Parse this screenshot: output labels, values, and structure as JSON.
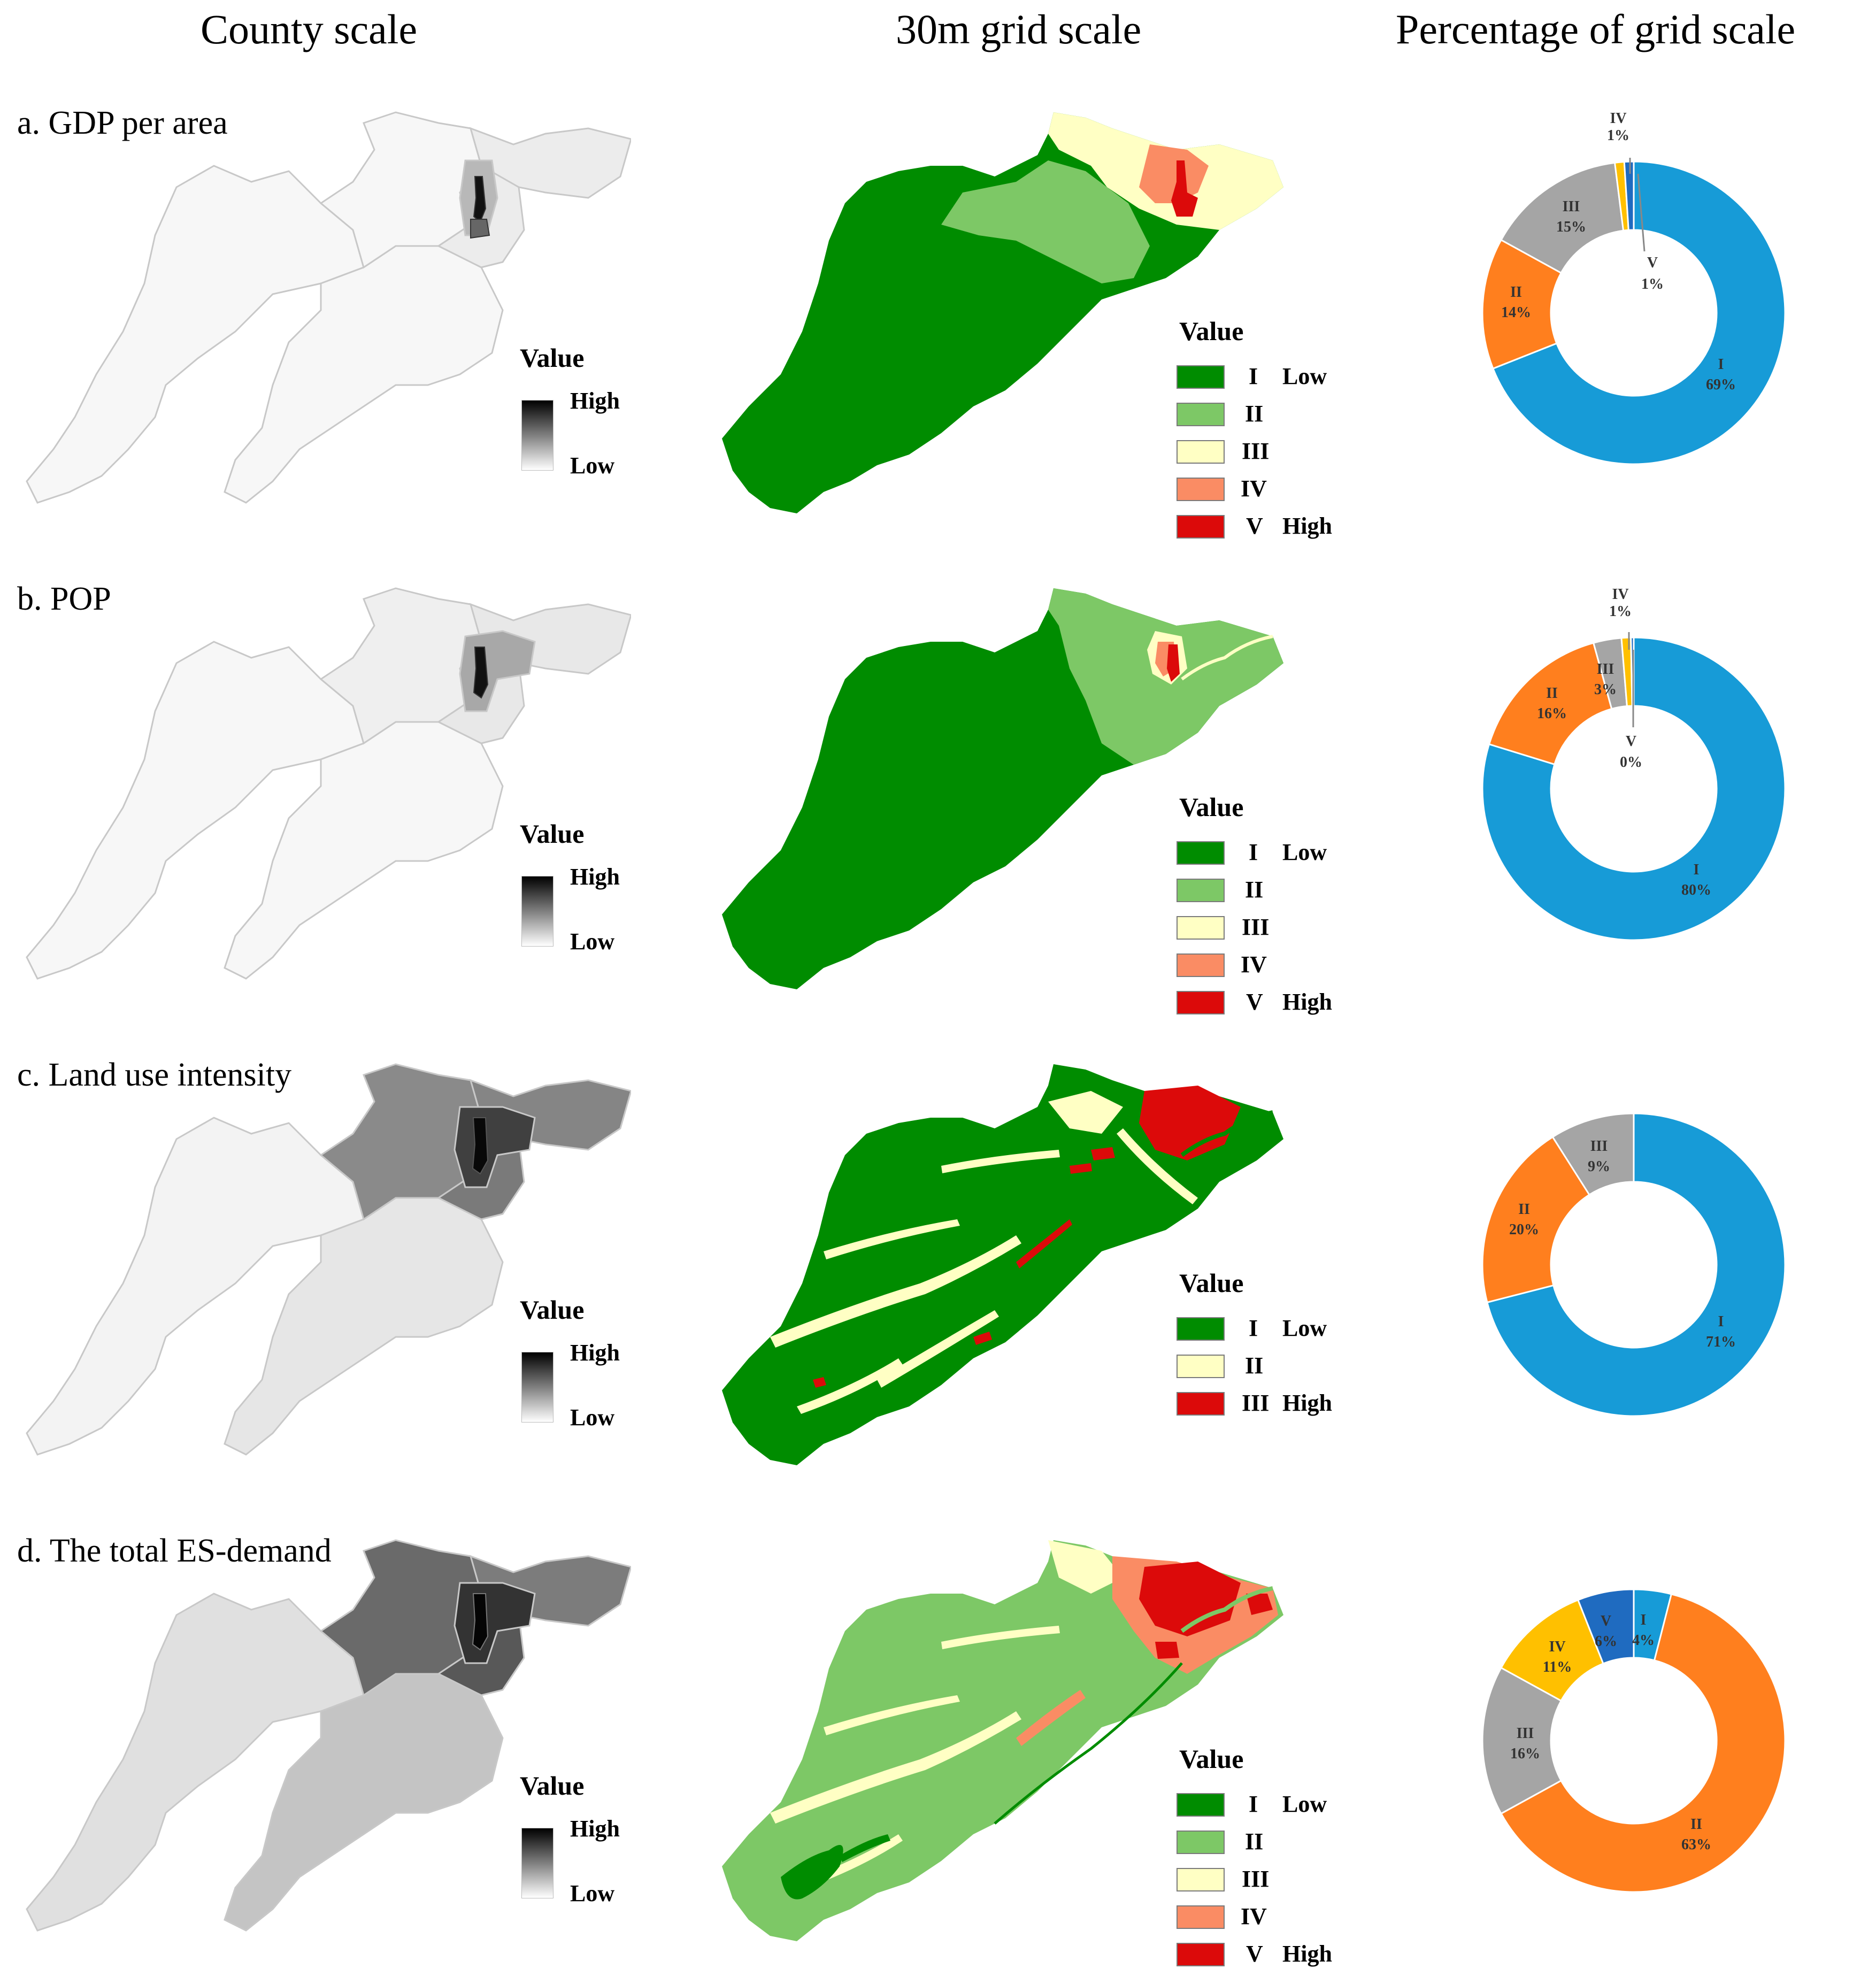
{
  "column_titles": {
    "county": "County scale",
    "grid": "30m grid scale",
    "percentage": "Percentage of grid scale"
  },
  "rows": [
    {
      "label": "a. GDP per area",
      "county_legend": {
        "title": "Value",
        "high": "High",
        "low": "Low"
      },
      "grid_legend": {
        "title": "Value",
        "classes": [
          {
            "roman": "I",
            "color": "#008C00",
            "end": "Low"
          },
          {
            "roman": "II",
            "color": "#7DC866",
            "end": ""
          },
          {
            "roman": "III",
            "color": "#FFFFC4",
            "end": ""
          },
          {
            "roman": "IV",
            "color": "#FA8C64",
            "end": ""
          },
          {
            "roman": "V",
            "color": "#DC0A0A",
            "end": "High"
          }
        ]
      },
      "donut": {
        "slices": [
          {
            "label": "I",
            "percent": "69%",
            "value": 69,
            "color": "#179BD7"
          },
          {
            "label": "II",
            "percent": "14%",
            "value": 14,
            "color": "#FF7F1E"
          },
          {
            "label": "III",
            "percent": "15%",
            "value": 15,
            "color": "#A5A5A5"
          },
          {
            "label": "IV",
            "percent": "1%",
            "value": 1,
            "color": "#FFC000"
          },
          {
            "label": "V",
            "percent": "1%",
            "value": 1,
            "color": "#1F6BC0"
          }
        ]
      }
    },
    {
      "label": "b. POP",
      "county_legend": {
        "title": "Value",
        "high": "High",
        "low": "Low"
      },
      "grid_legend": {
        "title": "Value",
        "classes": [
          {
            "roman": "I",
            "color": "#008C00",
            "end": "Low"
          },
          {
            "roman": "II",
            "color": "#7DC866",
            "end": ""
          },
          {
            "roman": "III",
            "color": "#FFFFC4",
            "end": ""
          },
          {
            "roman": "IV",
            "color": "#FA8C64",
            "end": ""
          },
          {
            "roman": "V",
            "color": "#DC0A0A",
            "end": "High"
          }
        ]
      },
      "donut": {
        "slices": [
          {
            "label": "I",
            "percent": "80%",
            "value": 80,
            "color": "#179BD7"
          },
          {
            "label": "II",
            "percent": "16%",
            "value": 16,
            "color": "#FF7F1E"
          },
          {
            "label": "III",
            "percent": "3%",
            "value": 3,
            "color": "#A5A5A5"
          },
          {
            "label": "IV",
            "percent": "1%",
            "value": 1,
            "color": "#FFC000"
          },
          {
            "label": "V",
            "percent": "0%",
            "value": 0.3,
            "color": "#1F6BC0"
          }
        ]
      }
    },
    {
      "label": "c. Land use intensity",
      "county_legend": {
        "title": "Value",
        "high": "High",
        "low": "Low"
      },
      "grid_legend": {
        "title": "Value",
        "classes": [
          {
            "roman": "I",
            "color": "#008C00",
            "end": "Low"
          },
          {
            "roman": "II",
            "color": "#FFFFC4",
            "end": ""
          },
          {
            "roman": "III",
            "color": "#DC0A0A",
            "end": "High"
          }
        ]
      },
      "donut": {
        "slices": [
          {
            "label": "I",
            "percent": "71%",
            "value": 71,
            "color": "#179BD7"
          },
          {
            "label": "II",
            "percent": "20%",
            "value": 20,
            "color": "#FF7F1E"
          },
          {
            "label": "III",
            "percent": "9%",
            "value": 9,
            "color": "#A5A5A5"
          }
        ]
      }
    },
    {
      "label": "d. The total ES-demand",
      "county_legend": {
        "title": "Value",
        "high": "High",
        "low": "Low"
      },
      "grid_legend": {
        "title": "Value",
        "classes": [
          {
            "roman": "I",
            "color": "#008C00",
            "end": "Low"
          },
          {
            "roman": "II",
            "color": "#7DC866",
            "end": ""
          },
          {
            "roman": "III",
            "color": "#FFFFC4",
            "end": ""
          },
          {
            "roman": "IV",
            "color": "#FA8C64",
            "end": ""
          },
          {
            "roman": "V",
            "color": "#DC0A0A",
            "end": "High"
          }
        ]
      },
      "donut": {
        "slices": [
          {
            "label": "I",
            "percent": "4%",
            "value": 4,
            "color": "#179BD7"
          },
          {
            "label": "II",
            "percent": "63%",
            "value": 63,
            "color": "#FF7F1E"
          },
          {
            "label": "III",
            "percent": "16%",
            "value": 16,
            "color": "#A5A5A5"
          },
          {
            "label": "IV",
            "percent": "11%",
            "value": 11,
            "color": "#FFC000"
          },
          {
            "label": "V",
            "percent": "6%",
            "value": 6,
            "color": "#1F6BC0"
          }
        ]
      }
    }
  ]
}
